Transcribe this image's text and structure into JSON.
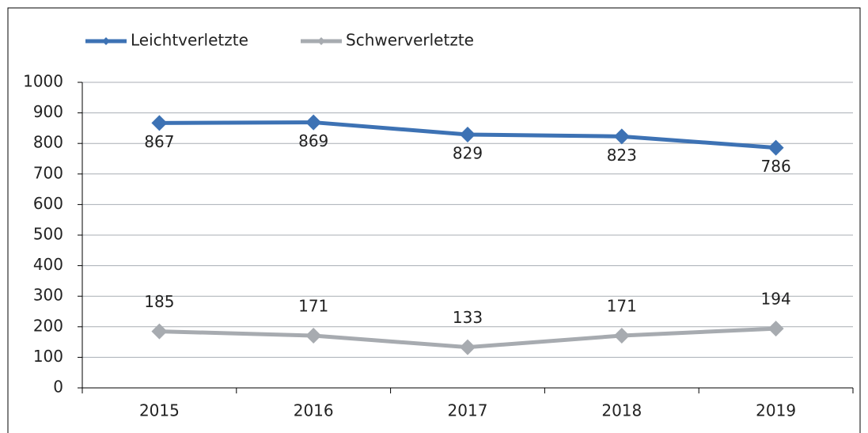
{
  "chart_data": {
    "type": "line",
    "categories": [
      "2015",
      "2016",
      "2017",
      "2018",
      "2019"
    ],
    "series": [
      {
        "name": "Leichtverletzte",
        "color": "#3d72b4",
        "values": [
          867,
          869,
          829,
          823,
          786
        ],
        "label_pos": "below"
      },
      {
        "name": "Schwerverletzte",
        "color": "#a7abb0",
        "values": [
          185,
          171,
          133,
          171,
          194
        ],
        "label_pos": "above"
      }
    ],
    "ylim": [
      0,
      1000
    ],
    "yticks": [
      0,
      100,
      200,
      300,
      400,
      500,
      600,
      700,
      800,
      900,
      1000
    ],
    "grid": true,
    "legend": "top-left"
  }
}
